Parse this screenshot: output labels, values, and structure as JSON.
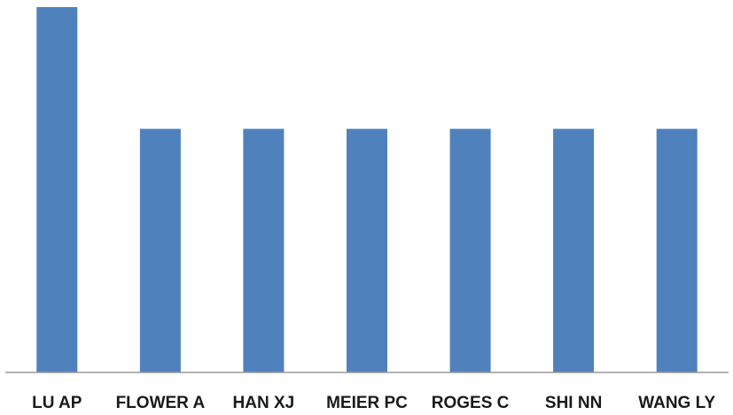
{
  "chart_data": {
    "type": "bar",
    "categories": [
      "LU AP",
      "FLOWER A",
      "HAN XJ",
      "MEIER PC",
      "ROGES C",
      "SHI NN",
      "WANG LY"
    ],
    "values": [
      3,
      2,
      2,
      2,
      2,
      2,
      2
    ],
    "ylim": [
      0,
      3
    ],
    "grid": false,
    "legend": "none",
    "bar_color": "#4f81bd",
    "axis_color": "#9a9a9a"
  }
}
